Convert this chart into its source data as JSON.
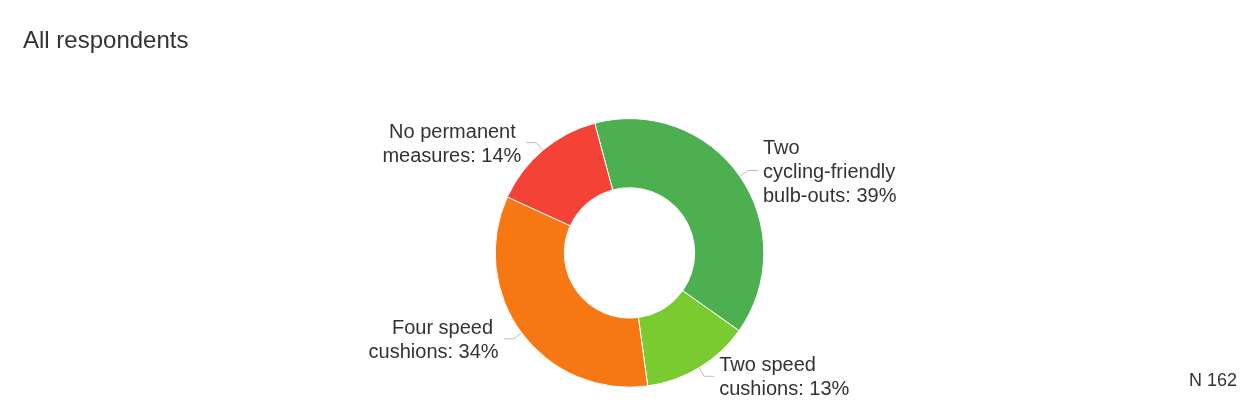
{
  "chart_data": {
    "type": "donut",
    "title": "All respondents",
    "categories": [
      "Two cycling-friendly bulb-outs",
      "Two speed cushions",
      "Four speed cushions",
      "No permanent measures"
    ],
    "values": [
      39,
      13,
      34,
      14
    ],
    "colors": [
      "#4caf50",
      "#7acb30",
      "#f77712",
      "#f44336"
    ],
    "value_labels": [
      "39%",
      "13%",
      "34%",
      "14%"
    ],
    "annotations": [
      "N 162"
    ]
  }
}
